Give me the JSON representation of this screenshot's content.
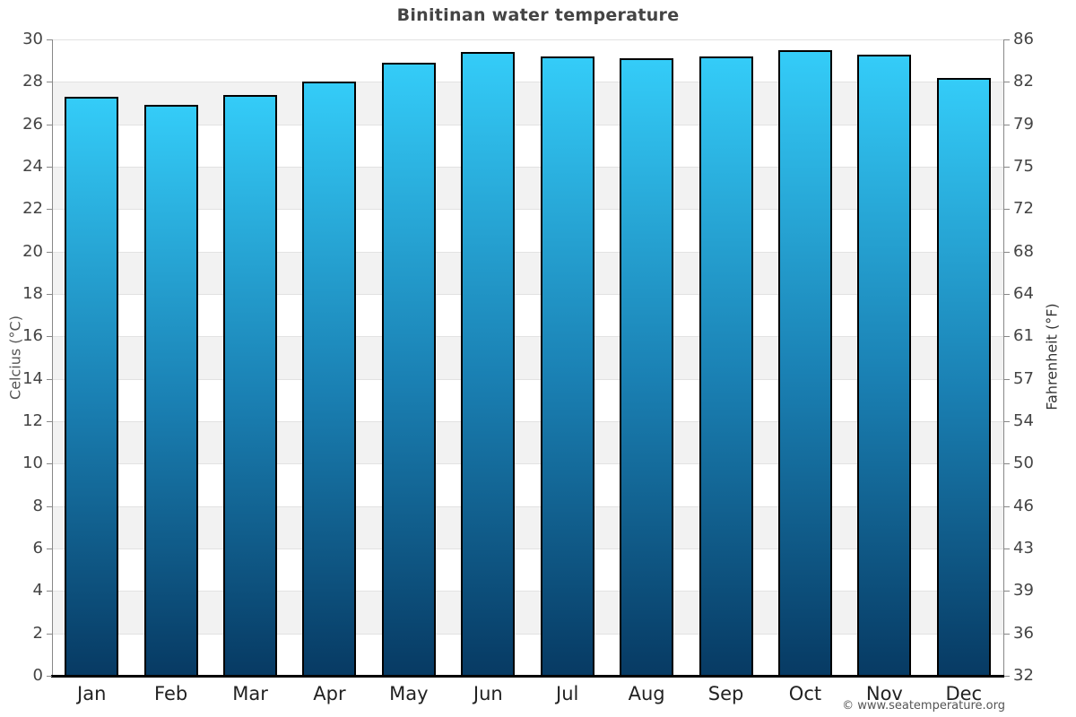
{
  "header": {
    "title": "Binitinan water temperature"
  },
  "footer": {
    "credit": "© www.seatemperature.org"
  },
  "chart_data": {
    "type": "bar",
    "title": "Binitinan water temperature",
    "categories": [
      "Jan",
      "Feb",
      "Mar",
      "Apr",
      "May",
      "Jun",
      "Jul",
      "Aug",
      "Sep",
      "Oct",
      "Nov",
      "Dec"
    ],
    "series": [
      {
        "name": "Water temperature",
        "unit": "°C",
        "values": [
          27.3,
          26.9,
          27.4,
          28.0,
          28.9,
          29.4,
          29.2,
          29.1,
          29.2,
          29.5,
          29.3,
          28.2
        ]
      }
    ],
    "ylabel_left": "Celcius (°C)",
    "ylabel_right": "Fahrenheit (°F)",
    "ylim_left": [
      0,
      30
    ],
    "ytick_step_left": 2,
    "yticks_left": [
      30,
      28,
      26,
      24,
      22,
      20,
      18,
      16,
      14,
      12,
      10,
      8,
      6,
      4,
      2,
      0
    ],
    "yticks_right": [
      86,
      82,
      79,
      75,
      72,
      68,
      64,
      61,
      57,
      54,
      50,
      46,
      43,
      39,
      36,
      32
    ],
    "grid": "alternating white/gray horizontal bands, 2°C each, light gridline at each band boundary",
    "legend_position": "none",
    "colors": {
      "bar_gradient_top": "#34ccf8",
      "bar_gradient_mid": "#1a80b3",
      "bar_gradient_bottom": "#073a63",
      "bar_border": "#000000",
      "band_gray": "#f2f2f2",
      "band_white": "#ffffff",
      "grid_line": "#e2e2e2",
      "axis_line": "#888888",
      "baseline": "#000000",
      "title_text": "#444444",
      "tick_text": "#444444",
      "month_text": "#222222",
      "footer_text": "#555555"
    }
  }
}
